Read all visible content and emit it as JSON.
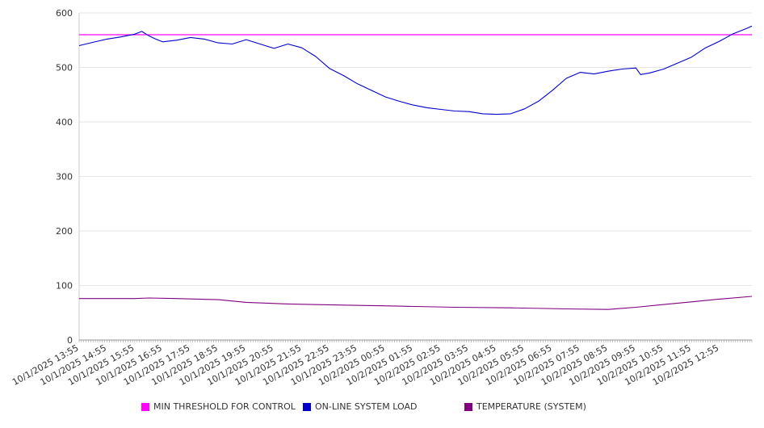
{
  "chart_data": {
    "type": "line",
    "title": "",
    "xlabel": "",
    "ylabel": "",
    "ylim": [
      0,
      600
    ],
    "yticks": [
      0,
      100,
      200,
      300,
      400,
      500,
      600
    ],
    "grid": true,
    "legend_position": "bottom",
    "x_tick_labels": [
      "10/1/2025 13:55",
      "10/1/2025 14:55",
      "10/1/2025 15:55",
      "10/1/2025 16:55",
      "10/1/2025 17:55",
      "10/1/2025 18:55",
      "10/1/2025 19:55",
      "10/1/2025 20:55",
      "10/1/2025 21:55",
      "10/1/2025 22:55",
      "10/1/2025 23:55",
      "10/2/2025 00:55",
      "10/2/2025 01:55",
      "10/2/2025 02:55",
      "10/2/2025 03:55",
      "10/2/2025 04:55",
      "10/2/2025 05:55",
      "10/2/2025 06:55",
      "10/2/2025 07:55",
      "10/2/2025 08:55",
      "10/2/2025 09:55",
      "10/2/2025 10:55",
      "10/2/2025 11:55",
      "10/2/2025 12:55"
    ],
    "x_range": [
      "10/1/2025 13:55",
      "10/2/2025 14:05"
    ],
    "series": [
      {
        "name": "MIN THRESHOLD FOR CONTROL",
        "color": "#ff00ff",
        "style": "constant",
        "value": 560
      },
      {
        "name": "ON-LINE SYSTEM LOAD",
        "color": "#0000cc",
        "points": [
          [
            "10/1/2025 13:55",
            540
          ],
          [
            "10/1/2025 14:25",
            546
          ],
          [
            "10/1/2025 14:55",
            552
          ],
          [
            "10/1/2025 15:25",
            556
          ],
          [
            "10/1/2025 15:55",
            561
          ],
          [
            "10/1/2025 16:10",
            566
          ],
          [
            "10/1/2025 16:25",
            558
          ],
          [
            "10/1/2025 16:40",
            552
          ],
          [
            "10/1/2025 16:55",
            547
          ],
          [
            "10/1/2025 17:25",
            550
          ],
          [
            "10/1/2025 17:55",
            555
          ],
          [
            "10/1/2025 18:25",
            552
          ],
          [
            "10/1/2025 18:55",
            545
          ],
          [
            "10/1/2025 19:25",
            543
          ],
          [
            "10/1/2025 19:55",
            551
          ],
          [
            "10/1/2025 20:25",
            543
          ],
          [
            "10/1/2025 20:55",
            535
          ],
          [
            "10/1/2025 21:25",
            543
          ],
          [
            "10/1/2025 21:55",
            536
          ],
          [
            "10/1/2025 22:25",
            520
          ],
          [
            "10/1/2025 22:55",
            498
          ],
          [
            "10/1/2025 23:25",
            485
          ],
          [
            "10/1/2025 23:55",
            470
          ],
          [
            "10/2/2025 00:25",
            458
          ],
          [
            "10/2/2025 00:55",
            446
          ],
          [
            "10/2/2025 01:25",
            438
          ],
          [
            "10/2/2025 01:55",
            431
          ],
          [
            "10/2/2025 02:25",
            426
          ],
          [
            "10/2/2025 02:55",
            423
          ],
          [
            "10/2/2025 03:25",
            420
          ],
          [
            "10/2/2025 03:55",
            419
          ],
          [
            "10/2/2025 04:25",
            415
          ],
          [
            "10/2/2025 04:55",
            414
          ],
          [
            "10/2/2025 05:25",
            415
          ],
          [
            "10/2/2025 05:55",
            424
          ],
          [
            "10/2/2025 06:25",
            438
          ],
          [
            "10/2/2025 06:55",
            458
          ],
          [
            "10/2/2025 07:25",
            480
          ],
          [
            "10/2/2025 07:55",
            491
          ],
          [
            "10/2/2025 08:25",
            488
          ],
          [
            "10/2/2025 08:55",
            493
          ],
          [
            "10/2/2025 09:25",
            497
          ],
          [
            "10/2/2025 09:55",
            499
          ],
          [
            "10/2/2025 10:05",
            487
          ],
          [
            "10/2/2025 10:25",
            490
          ],
          [
            "10/2/2025 10:55",
            497
          ],
          [
            "10/2/2025 11:25",
            508
          ],
          [
            "10/2/2025 11:55",
            519
          ],
          [
            "10/2/2025 12:25",
            536
          ],
          [
            "10/2/2025 12:55",
            548
          ],
          [
            "10/2/2025 13:25",
            562
          ],
          [
            "10/2/2025 13:55",
            572
          ],
          [
            "10/2/2025 14:05",
            576
          ]
        ]
      },
      {
        "name": "TEMPERATURE (SYSTEM)",
        "color": "#800080",
        "points": [
          [
            "10/1/2025 13:55",
            76
          ],
          [
            "10/1/2025 15:55",
            76
          ],
          [
            "10/1/2025 16:25",
            77
          ],
          [
            "10/1/2025 17:25",
            76
          ],
          [
            "10/1/2025 18:55",
            74
          ],
          [
            "10/1/2025 19:55",
            69
          ],
          [
            "10/1/2025 21:25",
            66
          ],
          [
            "10/1/2025 23:25",
            64
          ],
          [
            "10/2/2025 01:25",
            62
          ],
          [
            "10/2/2025 03:25",
            60
          ],
          [
            "10/2/2025 05:25",
            59
          ],
          [
            "10/2/2025 07:25",
            57
          ],
          [
            "10/2/2025 08:55",
            56
          ],
          [
            "10/2/2025 09:55",
            60
          ],
          [
            "10/2/2025 10:55",
            65
          ],
          [
            "10/2/2025 11:55",
            70
          ],
          [
            "10/2/2025 12:55",
            75
          ],
          [
            "10/2/2025 14:05",
            80
          ]
        ]
      }
    ]
  }
}
